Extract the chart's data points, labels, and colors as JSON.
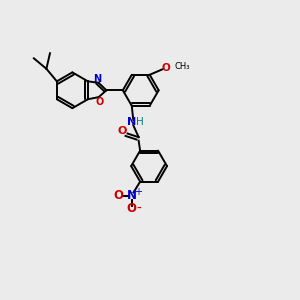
{
  "bg_color": "#ebebeb",
  "black": "#000000",
  "blue": "#0000cc",
  "red": "#cc0000",
  "teal": "#008080",
  "lw": 1.4,
  "ring_r": 0.6,
  "xlim": [
    0,
    10
  ],
  "ylim": [
    0,
    10
  ],
  "figsize": [
    3.0,
    3.0
  ],
  "dpi": 100
}
